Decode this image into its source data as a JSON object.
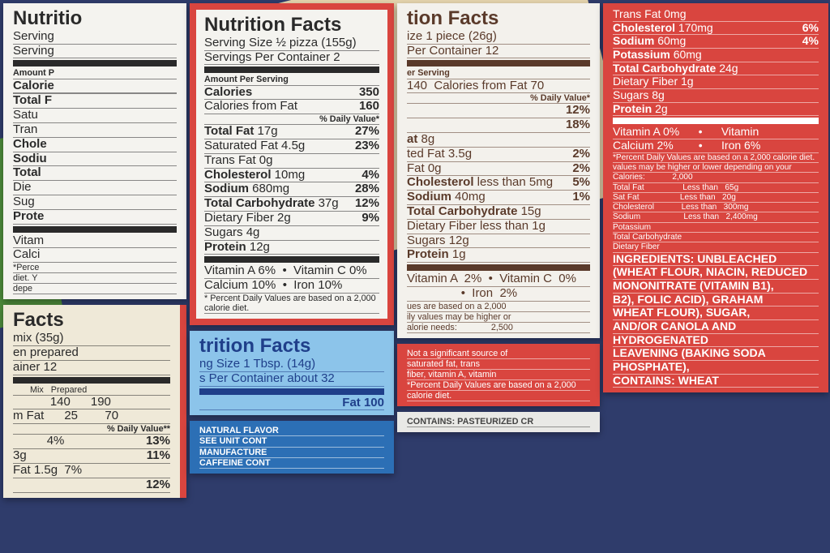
{
  "colors": {
    "red": "#d9453f",
    "brown": "#5a3a2a",
    "ink": "#2a2a2a",
    "blue_card": "#8cc4ea",
    "navy": "#2f3c6b",
    "cream": "#efe9d8"
  },
  "labels": [
    {
      "id": "center-pizza-label",
      "title": "Nutrition Facts",
      "color": "#2a2a2a",
      "bg": "#f4f3ef",
      "border": "#d9453f",
      "lines": [
        {
          "v": "Serving Size ½ pizza (155g)"
        },
        {
          "v": "Servings Per Container 2"
        },
        {
          "bar": 1
        },
        {
          "k": "Amount Per Serving",
          "small": 1
        },
        {
          "k": "Calories",
          "r": "350"
        },
        {
          "v": "Calories from Fat",
          "r": "160"
        },
        {
          "r": "% Daily Value*",
          "small": 1
        },
        {
          "k": "Total Fat",
          "v": " 17g",
          "r": "27%"
        },
        {
          "v": "Saturated Fat 4.5g",
          "r": "23%"
        },
        {
          "v": "Trans Fat 0g"
        },
        {
          "k": "Cholesterol",
          "v": " 10mg",
          "r": "4%"
        },
        {
          "k": "Sodium",
          "v": " 680mg",
          "r": "28%"
        },
        {
          "k": "Total Carbohydrate",
          "v": " 37g",
          "r": "12%"
        },
        {
          "v": "Dietary Fiber 2g",
          "r": "9%"
        },
        {
          "v": "Sugars 4g"
        },
        {
          "k": "Protein",
          "v": " 12g"
        },
        {
          "bar": 1
        },
        {
          "v": "Vitamin A 6%  •  Vitamin C 0%"
        },
        {
          "v": "Calcium 10%  •  Iron 10%"
        },
        {
          "v": "* Percent Daily Values are based on a 2,000 calorie diet.",
          "small": 1
        }
      ]
    },
    {
      "id": "brown-piece-label",
      "title": "tion Facts",
      "color": "#5a3a2a",
      "bg": "#f3f1ec",
      "border": "#f3f1ec",
      "lines": [
        {
          "v": "ize 1 piece (26g)"
        },
        {
          "v": "Per Container 12"
        },
        {
          "bar": 1
        },
        {
          "k": "er Serving",
          "small": 1
        },
        {
          "v": "140  Calories from Fat 70"
        },
        {
          "r": "% Daily Value*",
          "small": 1
        },
        {
          "r": "12%"
        },
        {
          "r": "18%"
        },
        {
          "k": "at",
          "v": " 8g"
        },
        {
          "v": "ted Fat 3.5g",
          "r": "2%"
        },
        {
          "v": "Fat 0g",
          "r": "2%"
        },
        {
          "k": "Cholesterol",
          "v": " less than 5mg",
          "r": "5%"
        },
        {
          "k": "Sodium",
          "v": " 40mg",
          "r": "1%"
        },
        {
          "k": "Total Carbohydrate",
          "v": " 15g"
        },
        {
          "v": "Dietary Fiber less than 1g"
        },
        {
          "v": "Sugars 12g"
        },
        {
          "k": "Protein",
          "v": " 1g"
        },
        {
          "bar": 1
        },
        {
          "v": "Vitamin A  2%  •  Vitamin C  0%"
        },
        {
          "v": "                •  Iron  2%"
        },
        {
          "v": "ues are based on a 2,000",
          "small": 1
        },
        {
          "v": "ily values may be higher or",
          "small": 1
        },
        {
          "v": "alorie needs:              2,500",
          "small": 1
        }
      ]
    },
    {
      "id": "red-cracker-label",
      "title": "",
      "color": "#ffffff",
      "bg": "#d9453f",
      "border": "#d9453f",
      "lines": [
        {
          "v": "Trans Fat 0mg"
        },
        {
          "k": "Cholesterol",
          "v": " 170mg",
          "r": "6%"
        },
        {
          "k": "Sodium",
          "v": " 60mg",
          "r": "4%"
        },
        {
          "k": "Potassium",
          "v": " 60mg"
        },
        {
          "k": "Total Carbohydrate",
          "v": " 24g"
        },
        {
          "v": "Dietary Fiber 1g"
        },
        {
          "v": "Sugars 8g"
        },
        {
          "k": "Protein",
          "v": " 2g"
        },
        {
          "bar": 1
        },
        {
          "v": "Vitamin A 0%      •      Vitamin"
        },
        {
          "v": "Calcium 2%        •      Iron 6%"
        },
        {
          "v": "*Percent Daily Values are based on a 2,000 calorie diet.",
          "small": 1
        },
        {
          "v": "values may be higher or lower depending on your",
          "small": 1
        },
        {
          "v": "Calories:            2,000",
          "small": 1
        },
        {
          "v": "Total Fat                 Less than   65g",
          "small": 1
        },
        {
          "v": "Sat Fat                  Less than   20g",
          "small": 1
        },
        {
          "v": "Cholesterol            Less than   300mg",
          "small": 1
        },
        {
          "v": "Sodium                   Less than   2,400mg",
          "small": 1
        },
        {
          "v": "Potassium",
          "small": 1
        },
        {
          "v": "Total Carbohydrate",
          "small": 1
        },
        {
          "v": "Dietary Fiber",
          "small": 1
        },
        {
          "k": "INGREDIENTS: UNBLEACHED"
        },
        {
          "k": "(WHEAT FLOUR, NIACIN, REDUCED"
        },
        {
          "k": "MONONITRATE (VITAMIN B1),"
        },
        {
          "k": "B2), FOLIC ACID), GRAHAM"
        },
        {
          "k": "WHEAT FLOUR), SUGAR,"
        },
        {
          "k": "AND/OR CANOLA AND"
        },
        {
          "k": "HYDROGENATED"
        },
        {
          "k": "LEAVENING (BAKING SODA"
        },
        {
          "k": "PHOSPHATE),"
        },
        {
          "k": "CONTAINS: WHEAT"
        }
      ]
    },
    {
      "id": "blue-spread-label",
      "title": "trition Facts",
      "color": "#1f3f8a",
      "bg": "#8cc4ea",
      "border": "#8cc4ea",
      "lines": [
        {
          "v": "ng Size 1 Tbsp. (14g)"
        },
        {
          "v": "s Per Container about 32"
        },
        {
          "bar": 1
        },
        {
          "r": "Fat 100"
        }
      ]
    },
    {
      "id": "left-mix-label",
      "title": "Facts",
      "color": "#2a2a2a",
      "bg": "#efe9d8",
      "border": "#efe9d8",
      "lines": [
        {
          "v": "mix (35g)"
        },
        {
          "v": "en prepared"
        },
        {
          "v": "ainer 12"
        },
        {
          "bar": 1
        },
        {
          "k": "",
          "v": "       Mix   Prepared",
          "small": 1
        },
        {
          "v": "           140      190"
        },
        {
          "v": "m Fat      25        70"
        },
        {
          "r": "% Daily Value**",
          "small": 1
        },
        {
          "v": "          4%",
          "r": "13%"
        },
        {
          "v": "3g",
          "r": "11%"
        },
        {
          "v": "Fat 1.5g  7%"
        },
        {
          "r": "12%"
        }
      ]
    },
    {
      "id": "left-back-label",
      "title": "Nutritio",
      "color": "#2a2a2a",
      "bg": "#f4f3ef",
      "border": "#f4f3ef",
      "lines": [
        {
          "v": "Serving"
        },
        {
          "v": "Serving"
        },
        {
          "bar": 1
        },
        {
          "k": "Amount P",
          "small": 1
        },
        {
          "k": "Calorie"
        },
        {
          "v": ""
        },
        {
          "k": "Total F"
        },
        {
          "v": "Satu"
        },
        {
          "v": "Tran"
        },
        {
          "k": "Chole"
        },
        {
          "k": "Sodiu"
        },
        {
          "k": "Total"
        },
        {
          "v": "Die"
        },
        {
          "v": "Sug"
        },
        {
          "k": "Prote"
        },
        {
          "bar": 1
        },
        {
          "v": "Vitam"
        },
        {
          "v": "Calci"
        },
        {
          "v": "*Perce",
          "small": 1
        },
        {
          "v": "diet. Y",
          "small": 1
        },
        {
          "v": "depe",
          "small": 1
        }
      ]
    },
    {
      "id": "top-red-label",
      "title": "",
      "color": "#ffffff",
      "bg": "#d9453f",
      "border": "#d9453f",
      "lines": [
        {
          "v": "Not a significant source of",
          "small": 1
        },
        {
          "v": "saturated fat, trans",
          "small": 1
        },
        {
          "v": "fiber, vitamin A, vitamin",
          "small": 1
        },
        {
          "v": "*Percent Daily Values are based on a 2,000",
          "small": 1
        },
        {
          "v": "calorie diet.",
          "small": 1
        }
      ]
    },
    {
      "id": "top-blue-label",
      "title": "",
      "color": "#ffffff",
      "bg": "#2c6fb5",
      "border": "#2c6fb5",
      "lines": [
        {
          "k": "NATURAL FLAVOR",
          "small": 1
        },
        {
          "k": "SEE UNIT CONT",
          "small": 1
        },
        {
          "k": "MANUFACTURE",
          "small": 1
        },
        {
          "k": "CAFFEINE CONT",
          "small": 1
        }
      ]
    },
    {
      "id": "top-left-strip",
      "title": "",
      "color": "#444444",
      "bg": "#e9e9e6",
      "border": "#e9e9e6",
      "lines": [
        {
          "k": "CONTAINS: PASTEURIZED CR",
          "small": 1
        }
      ]
    }
  ]
}
